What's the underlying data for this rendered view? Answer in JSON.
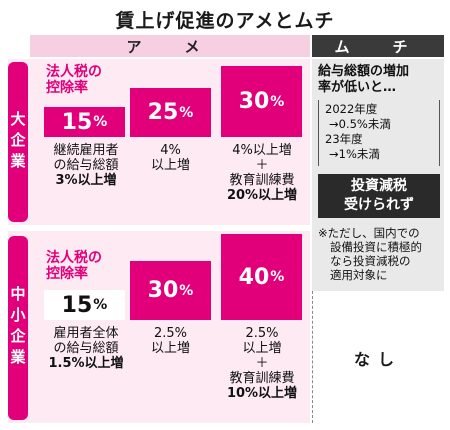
{
  "title": "賃上げ促進のアメとムチ",
  "headers": {
    "ame": "ア　メ",
    "muchi": "ム　チ"
  },
  "large_company": {
    "side_label": "大企業",
    "rate_label_line1": "法人税の",
    "rate_label_line2": "控除率",
    "tiers": [
      {
        "rate": "15",
        "unit": "%",
        "rate_value": 15,
        "cond_lines": [
          "継続雇用者",
          "の給与総額",
          "3%以上増"
        ]
      },
      {
        "rate": "25",
        "unit": "%",
        "rate_value": 25,
        "cond_lines": [
          "4%",
          "以上増"
        ]
      },
      {
        "rate": "30",
        "unit": "%",
        "rate_value": 30,
        "cond_lines": [
          "4%以上増",
          "＋",
          "教育訓練費",
          "20%以上増"
        ]
      }
    ]
  },
  "small_company": {
    "side_label": "中小企業",
    "rate_label_line1": "法人税の",
    "rate_label_line2": "控除率",
    "tiers": [
      {
        "rate": "15",
        "unit": "%",
        "rate_value": 15,
        "cond_lines": [
          "雇用者全体",
          "の給与総額",
          "1.5%以上増"
        ]
      },
      {
        "rate": "30",
        "unit": "%",
        "rate_value": 30,
        "cond_lines": [
          "2.5%",
          "以上増"
        ]
      },
      {
        "rate": "40",
        "unit": "%",
        "rate_value": 40,
        "cond_lines": [
          "2.5%",
          "以上増",
          "＋",
          "教育訓練費",
          "10%以上増"
        ]
      }
    ]
  },
  "muchi": {
    "head_line1": "給与総額の増加",
    "head_line2": "率が低いと…",
    "detail_lines": [
      "2022年度",
      "→0.5%未満",
      "23年度",
      "→1%未満"
    ],
    "black_line1": "投資減税",
    "black_line2": "受けられず",
    "note_lines": [
      "※ただし、国内での",
      "設備投資に積極的",
      "なら投資減税の",
      "適用対象に"
    ],
    "small_company_text": "なし"
  },
  "colors": {
    "accent": "#e2007a",
    "band": "#fdeaf3",
    "header_pink": "#f6cfe3",
    "dark": "#2a2a2a",
    "grey": "#e9e9e9"
  }
}
